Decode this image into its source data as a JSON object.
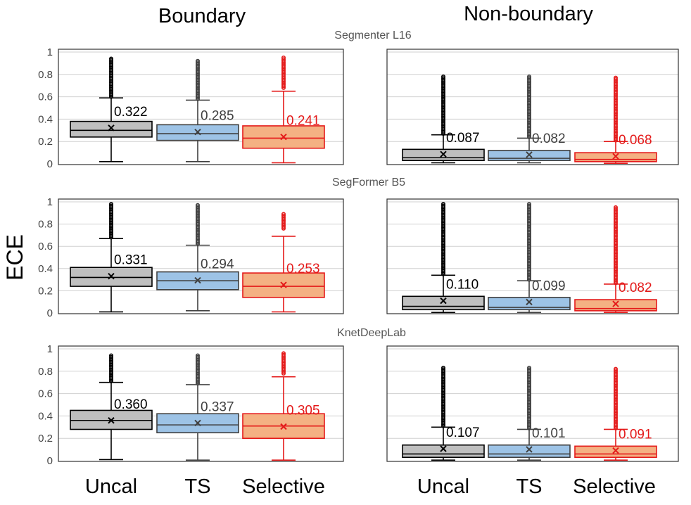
{
  "column_titles": [
    "Boundary",
    "Non-boundary"
  ],
  "ylabel": "ECE",
  "yticks": [
    "0",
    "0.2",
    "0.4",
    "0.6",
    "0.8",
    "1"
  ],
  "categories": [
    "Uncal",
    "TS",
    "Selective"
  ],
  "colors": {
    "Uncal": {
      "fill": "#bfbfbf",
      "stroke": "#000000",
      "label": "#000000"
    },
    "TS": {
      "fill": "#9dc3e6",
      "stroke": "#404040",
      "label": "#404040"
    },
    "Selective": {
      "fill": "#f4b183",
      "stroke": "#e41a1a",
      "label": "#e41a1a"
    }
  },
  "chart_data": [
    {
      "type": "box",
      "title": "Segmenter L16",
      "panel": "Boundary",
      "ylim": [
        0,
        1
      ],
      "series": [
        {
          "name": "Uncal",
          "min": 0.02,
          "q1": 0.24,
          "median": 0.3,
          "q3": 0.38,
          "max": 0.59,
          "mean": 0.322,
          "mean_label": "0.322",
          "outliers_from": 0.6,
          "outliers_to": 0.94
        },
        {
          "name": "TS",
          "min": 0.02,
          "q1": 0.21,
          "median": 0.27,
          "q3": 0.35,
          "max": 0.57,
          "mean": 0.285,
          "mean_label": "0.285",
          "outliers_from": 0.58,
          "outliers_to": 0.92
        },
        {
          "name": "Selective",
          "min": 0.01,
          "q1": 0.14,
          "median": 0.23,
          "q3": 0.34,
          "max": 0.65,
          "mean": 0.241,
          "mean_label": "0.241",
          "outliers_from": 0.68,
          "outliers_to": 0.95
        }
      ]
    },
    {
      "type": "box",
      "title": "Segmenter L16",
      "panel": "Non-boundary",
      "ylim": [
        0,
        1
      ],
      "series": [
        {
          "name": "Uncal",
          "min": 0.01,
          "q1": 0.03,
          "median": 0.055,
          "q3": 0.13,
          "max": 0.26,
          "mean": 0.087,
          "mean_label": "0.087",
          "outliers_from": 0.27,
          "outliers_to": 0.78
        },
        {
          "name": "TS",
          "min": 0.01,
          "q1": 0.03,
          "median": 0.05,
          "q3": 0.12,
          "max": 0.23,
          "mean": 0.082,
          "mean_label": "0.082",
          "outliers_from": 0.24,
          "outliers_to": 0.78
        },
        {
          "name": "Selective",
          "min": 0.005,
          "q1": 0.02,
          "median": 0.04,
          "q3": 0.1,
          "max": 0.2,
          "mean": 0.068,
          "mean_label": "0.068",
          "outliers_from": 0.21,
          "outliers_to": 0.77
        }
      ]
    },
    {
      "type": "box",
      "title": "SegFormer B5",
      "panel": "Boundary",
      "ylim": [
        0,
        1
      ],
      "series": [
        {
          "name": "Uncal",
          "min": 0.01,
          "q1": 0.24,
          "median": 0.32,
          "q3": 0.41,
          "max": 0.67,
          "mean": 0.331,
          "mean_label": "0.331",
          "outliers_from": 0.68,
          "outliers_to": 0.98
        },
        {
          "name": "TS",
          "min": 0.02,
          "q1": 0.21,
          "median": 0.29,
          "q3": 0.37,
          "max": 0.61,
          "mean": 0.294,
          "mean_label": "0.294",
          "outliers_from": 0.62,
          "outliers_to": 0.97
        },
        {
          "name": "Selective",
          "min": 0.01,
          "q1": 0.14,
          "median": 0.24,
          "q3": 0.36,
          "max": 0.69,
          "mean": 0.253,
          "mean_label": "0.253",
          "outliers_from": 0.76,
          "outliers_to": 0.89
        }
      ]
    },
    {
      "type": "box",
      "title": "SegFormer B5",
      "panel": "Non-boundary",
      "ylim": [
        0,
        1
      ],
      "series": [
        {
          "name": "Uncal",
          "min": 0.005,
          "q1": 0.03,
          "median": 0.06,
          "q3": 0.15,
          "max": 0.34,
          "mean": 0.11,
          "mean_label": "0.110",
          "outliers_from": 0.35,
          "outliers_to": 0.98
        },
        {
          "name": "TS",
          "min": 0.005,
          "q1": 0.03,
          "median": 0.05,
          "q3": 0.14,
          "max": 0.29,
          "mean": 0.099,
          "mean_label": "0.099",
          "outliers_from": 0.3,
          "outliers_to": 0.98
        },
        {
          "name": "Selective",
          "min": 0.005,
          "q1": 0.02,
          "median": 0.04,
          "q3": 0.12,
          "max": 0.26,
          "mean": 0.082,
          "mean_label": "0.082",
          "outliers_from": 0.27,
          "outliers_to": 0.95
        }
      ]
    },
    {
      "type": "box",
      "title": "KnetDeepLab",
      "panel": "Boundary",
      "ylim": [
        0,
        1
      ],
      "series": [
        {
          "name": "Uncal",
          "min": 0.01,
          "q1": 0.28,
          "median": 0.36,
          "q3": 0.45,
          "max": 0.7,
          "mean": 0.36,
          "mean_label": "0.360",
          "outliers_from": 0.71,
          "outliers_to": 0.94
        },
        {
          "name": "TS",
          "min": 0.005,
          "q1": 0.25,
          "median": 0.32,
          "q3": 0.42,
          "max": 0.68,
          "mean": 0.337,
          "mean_label": "0.337",
          "outliers_from": 0.69,
          "outliers_to": 0.94
        },
        {
          "name": "Selective",
          "min": 0.005,
          "q1": 0.2,
          "median": 0.31,
          "q3": 0.42,
          "max": 0.75,
          "mean": 0.305,
          "mean_label": "0.305",
          "outliers_from": 0.78,
          "outliers_to": 0.96
        }
      ]
    },
    {
      "type": "box",
      "title": "KnetDeepLab",
      "panel": "Non-boundary",
      "ylim": [
        0,
        1
      ],
      "series": [
        {
          "name": "Uncal",
          "min": 0.005,
          "q1": 0.03,
          "median": 0.06,
          "q3": 0.14,
          "max": 0.3,
          "mean": 0.107,
          "mean_label": "0.107",
          "outliers_from": 0.31,
          "outliers_to": 0.83
        },
        {
          "name": "TS",
          "min": 0.005,
          "q1": 0.03,
          "median": 0.06,
          "q3": 0.14,
          "max": 0.28,
          "mean": 0.101,
          "mean_label": "0.101",
          "outliers_from": 0.29,
          "outliers_to": 0.83
        },
        {
          "name": "Selective",
          "min": 0.005,
          "q1": 0.03,
          "median": 0.06,
          "q3": 0.13,
          "max": 0.28,
          "mean": 0.091,
          "mean_label": "0.091",
          "outliers_from": 0.29,
          "outliers_to": 0.82
        }
      ]
    }
  ]
}
